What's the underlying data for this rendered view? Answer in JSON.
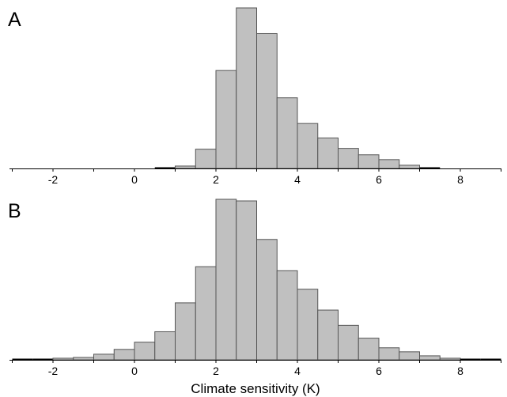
{
  "chart_data": [
    {
      "type": "bar",
      "panel_label": "A",
      "xlabel": "",
      "ylabel": "",
      "xlim": [
        -3,
        9
      ],
      "xticks": [
        -2,
        0,
        2,
        4,
        6,
        8
      ],
      "bin_width": 0.5,
      "bins": [
        {
          "x0": 0.5,
          "x1": 1.0,
          "value": 0.3
        },
        {
          "x0": 1.0,
          "x1": 1.5,
          "value": 1.5
        },
        {
          "x0": 1.5,
          "x1": 2.0,
          "value": 12.0
        },
        {
          "x0": 2.0,
          "x1": 2.5,
          "value": 61.0
        },
        {
          "x0": 2.5,
          "x1": 3.0,
          "value": 100.0
        },
        {
          "x0": 3.0,
          "x1": 3.5,
          "value": 84.0
        },
        {
          "x0": 3.5,
          "x1": 4.0,
          "value": 44.0
        },
        {
          "x0": 4.0,
          "x1": 4.5,
          "value": 28.0
        },
        {
          "x0": 4.5,
          "x1": 5.0,
          "value": 19.0
        },
        {
          "x0": 5.0,
          "x1": 5.5,
          "value": 12.5
        },
        {
          "x0": 5.5,
          "x1": 6.0,
          "value": 8.5
        },
        {
          "x0": 6.0,
          "x1": 6.5,
          "value": 5.5
        },
        {
          "x0": 6.5,
          "x1": 7.0,
          "value": 2.0
        },
        {
          "x0": 7.0,
          "x1": 7.5,
          "value": 0.3
        }
      ],
      "ylim": [
        0,
        100
      ]
    },
    {
      "type": "bar",
      "panel_label": "B",
      "xlabel": "Climate sensitivity (K)",
      "ylabel": "",
      "xlim": [
        -3,
        9
      ],
      "xticks": [
        -2,
        0,
        2,
        4,
        6,
        8
      ],
      "bin_width": 0.5,
      "bins": [
        {
          "x0": -3.0,
          "x1": -2.5,
          "value": 0.3
        },
        {
          "x0": -2.5,
          "x1": -2.0,
          "value": 0.5
        },
        {
          "x0": -2.0,
          "x1": -1.5,
          "value": 1.0
        },
        {
          "x0": -1.5,
          "x1": -1.0,
          "value": 1.5
        },
        {
          "x0": -1.0,
          "x1": -0.5,
          "value": 3.5
        },
        {
          "x0": -0.5,
          "x1": 0.0,
          "value": 6.5
        },
        {
          "x0": 0.0,
          "x1": 0.5,
          "value": 11.0
        },
        {
          "x0": 0.5,
          "x1": 1.0,
          "value": 17.5
        },
        {
          "x0": 1.0,
          "x1": 1.5,
          "value": 35.5
        },
        {
          "x0": 1.5,
          "x1": 2.0,
          "value": 58.0
        },
        {
          "x0": 2.0,
          "x1": 2.5,
          "value": 100.0
        },
        {
          "x0": 2.5,
          "x1": 3.0,
          "value": 99.0
        },
        {
          "x0": 3.0,
          "x1": 3.5,
          "value": 75.0
        },
        {
          "x0": 3.5,
          "x1": 4.0,
          "value": 55.5
        },
        {
          "x0": 4.0,
          "x1": 4.5,
          "value": 44.0
        },
        {
          "x0": 4.5,
          "x1": 5.0,
          "value": 31.0
        },
        {
          "x0": 5.0,
          "x1": 5.5,
          "value": 21.5
        },
        {
          "x0": 5.5,
          "x1": 6.0,
          "value": 13.5
        },
        {
          "x0": 6.0,
          "x1": 6.5,
          "value": 7.5
        },
        {
          "x0": 6.5,
          "x1": 7.0,
          "value": 5.0
        },
        {
          "x0": 7.0,
          "x1": 7.5,
          "value": 2.5
        },
        {
          "x0": 7.5,
          "x1": 8.0,
          "value": 1.0
        },
        {
          "x0": 8.0,
          "x1": 8.5,
          "value": 0.3
        },
        {
          "x0": 8.5,
          "x1": 9.0,
          "value": 0.3
        }
      ],
      "ylim": [
        0,
        100
      ]
    }
  ]
}
